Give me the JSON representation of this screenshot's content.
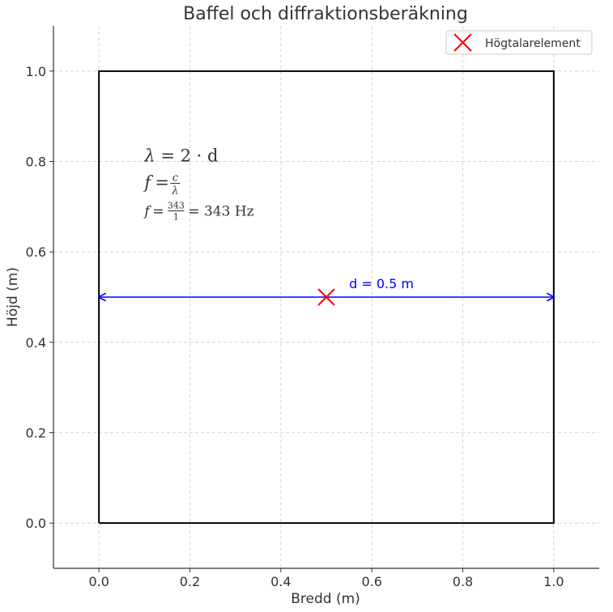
{
  "chart_data": {
    "type": "line",
    "title": "Baffel och diffraktionsberäkning",
    "xlabel": "Bredd (m)",
    "ylabel": "Höjd (m)",
    "xlim": [
      -0.1,
      1.1
    ],
    "ylim": [
      -0.1,
      1.1
    ],
    "xticks": [
      "0.0",
      "0.2",
      "0.4",
      "0.6",
      "0.8",
      "1.0"
    ],
    "yticks": [
      "0.0",
      "0.2",
      "0.4",
      "0.6",
      "0.8",
      "1.0"
    ],
    "xtick_values": [
      0,
      0.2,
      0.4,
      0.6,
      0.8,
      1.0
    ],
    "ytick_values": [
      0,
      0.2,
      0.4,
      0.6,
      0.8,
      1.0
    ],
    "grid": true,
    "legend_position": "top-right",
    "baffle": {
      "x": [
        0,
        1,
        1,
        0,
        0
      ],
      "y": [
        0,
        0,
        1,
        1,
        0
      ],
      "color": "#000000"
    },
    "speaker": {
      "name": "Högtalarelement",
      "x": 0.5,
      "y": 0.5,
      "marker": "x",
      "color": "#ff0000"
    },
    "dimension_arrows": [
      {
        "from": [
          0.5,
          0.5
        ],
        "to": [
          0,
          0.5
        ]
      },
      {
        "from": [
          0.5,
          0.5
        ],
        "to": [
          1,
          0.5
        ]
      }
    ],
    "dimension_label": {
      "text": "d = 0.5 m",
      "x": 0.55,
      "y": 0.52
    },
    "dimension_color": "#0000ff",
    "formula_anchor": {
      "x": 0.1,
      "y": 0.8
    },
    "formulas": {
      "lambda_lhs": "λ",
      "lambda_rhs": "= 2 · d",
      "f_lhs": "f",
      "f_eq": "=",
      "f_num": "c",
      "f_den": "λ",
      "f2_lhs": "f",
      "f2_eq": "=",
      "f2_num": "343",
      "f2_den": "1",
      "f2_result": "= 343 Hz"
    }
  }
}
